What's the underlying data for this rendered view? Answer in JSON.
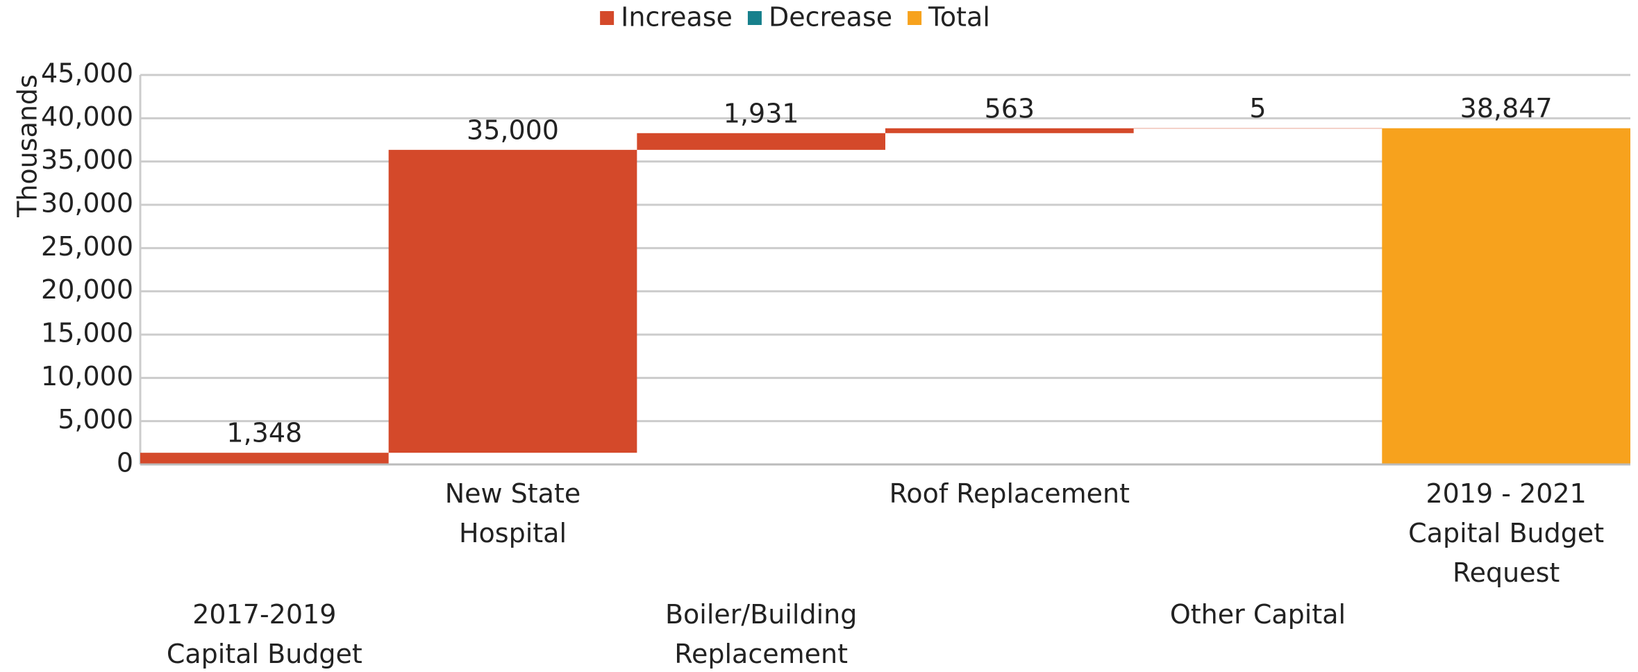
{
  "chart_data": {
    "type": "waterfall",
    "categories": [
      "2017-2019 Capital Budget",
      "New State Hospital",
      "Boiler/Building Replacement",
      "Roof Replacement",
      "Other Capital",
      "2019 - 2021 Capital Budget Request"
    ],
    "series": [
      {
        "name": "Increase",
        "color": "#d4492a",
        "values": [
          1348,
          35000,
          1931,
          563,
          5,
          null
        ]
      },
      {
        "name": "Decrease",
        "color": "#17808c",
        "values": [
          null,
          null,
          null,
          null,
          null,
          null
        ]
      },
      {
        "name": "Total",
        "color": "#f7a21d",
        "values": [
          null,
          null,
          null,
          null,
          null,
          38847
        ]
      }
    ],
    "value_labels": [
      "1,348",
      "35,000",
      "1,931",
      "563",
      "5",
      "38,847"
    ],
    "y_label": "Thousands",
    "ylim": [
      0,
      45000
    ],
    "yticks": [
      0,
      {
        "value": 5000,
        "label": "5,000"
      },
      {
        "value": 10000,
        "label": "10,000"
      },
      {
        "value": 15000,
        "label": "15,000"
      },
      {
        "value": 20000,
        "label": "20,000"
      },
      {
        "value": 25000,
        "label": "25,000"
      },
      {
        "value": 30000,
        "label": "30,000"
      },
      {
        "value": 35000,
        "label": "35,000"
      },
      {
        "value": 40000,
        "label": "40,000"
      },
      {
        "value": 45000,
        "label": "45,000"
      }
    ],
    "grid": true,
    "legend": "top"
  }
}
